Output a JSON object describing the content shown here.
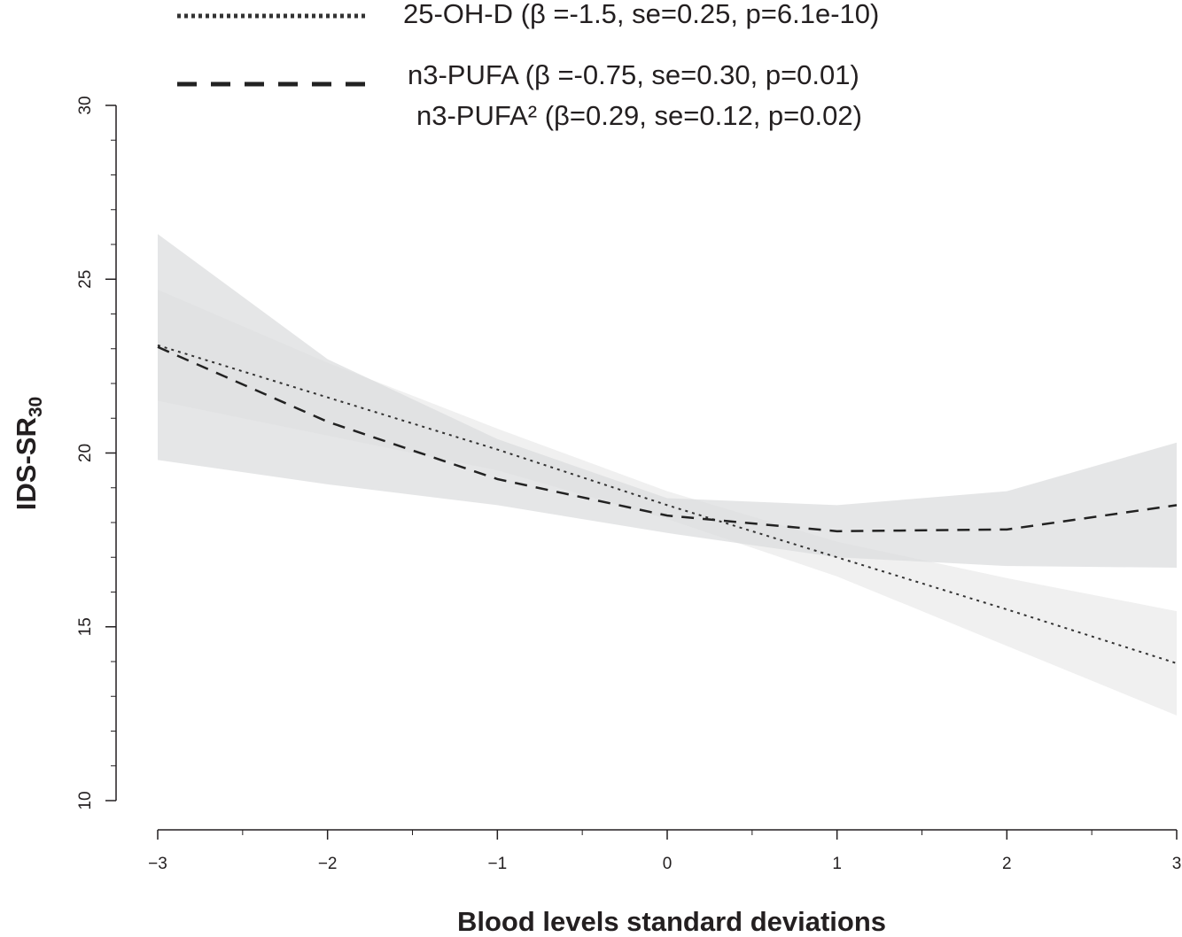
{
  "chart_data": {
    "type": "line",
    "x_label": "Blood levels standard deviations",
    "y_label": "IDS-SR",
    "y_label_subscript": "30",
    "x": [
      -3,
      -2,
      -1,
      0,
      1,
      2,
      3
    ],
    "series": [
      {
        "name": "25-OH-D (β =-1.5, se=0.25, p=6.1e-10)",
        "style": "dotted",
        "color": "#333333",
        "band_color": "#ebebeb",
        "values": [
          23.1,
          21.6,
          20.1,
          18.5,
          17.0,
          15.5,
          13.95
        ],
        "lower": [
          21.5,
          20.5,
          19.5,
          18.1,
          16.45,
          14.45,
          12.45
        ],
        "upper": [
          24.7,
          22.6,
          20.7,
          18.9,
          17.45,
          16.4,
          15.45
        ]
      },
      {
        "name": "n3-PUFA (β =-0.75, se=0.30, p=0.01)",
        "style": "dashed",
        "color": "#222222",
        "band_color": "#dcdddf",
        "values": [
          23.05,
          20.9,
          19.25,
          18.2,
          17.75,
          17.8,
          18.5
        ],
        "lower": [
          19.8,
          19.1,
          18.5,
          17.7,
          17.0,
          16.75,
          16.7
        ],
        "upper": [
          26.3,
          22.7,
          20.4,
          18.7,
          18.5,
          18.9,
          20.3
        ]
      }
    ],
    "annotations": [
      "n3-PUFA² (β=0.29, se=0.12, p=0.02)"
    ],
    "xlim": [
      -3,
      3
    ],
    "ylim": [
      10,
      30
    ],
    "xticks": [
      {
        "value": -3,
        "label": "−3"
      },
      {
        "value": -2,
        "label": "−2"
      },
      {
        "value": -1,
        "label": "−1"
      },
      0,
      1,
      2,
      3
    ],
    "x_minor_ticks": [
      -2.5,
      -1.5,
      -0.5,
      0.5,
      1.5,
      2.5
    ],
    "yticks": [
      10,
      15,
      20,
      25,
      30
    ],
    "y_minor_ticks": [
      11,
      12,
      13,
      14,
      16,
      17,
      18,
      19,
      21,
      22,
      23,
      24,
      26,
      27,
      28,
      29
    ],
    "grid": false
  }
}
